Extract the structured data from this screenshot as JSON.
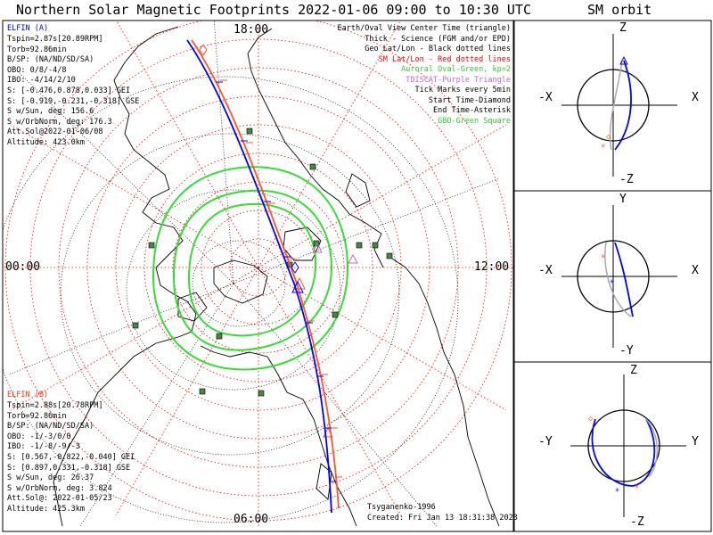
{
  "title": "Northern Solar Magnetic Footprints 2022-01-06 09:00 to 10:30 UTC",
  "orbit_title": "SM orbit",
  "map_ticks": {
    "top": "18:00",
    "left": "00:00",
    "right": "12:00",
    "bottom": "06:00"
  },
  "elfin_a": {
    "name": "ELFIN (A)",
    "lines": [
      "Tspin=2.87s[20.89RPM]",
      "Torb=92.86min",
      "B/SP: (NA/ND/SD/SA)",
      "OBO: 0/8/-4/8",
      "IBO: -4/14/2/10",
      "S: [-0.476,0.878,0.033] GEI",
      "S: [-0.919,-0.231,-0.318] GSE",
      "S w/Sun, deg: 156.6",
      "S w/OrbNorm, deg: 176.3",
      "Att.Sol@2022-01-06/08",
      "Altitude: 423.0km"
    ],
    "color": "#0000ff"
  },
  "elfin_b": {
    "name": "ELFIN (B)",
    "lines": [
      "Tspin=2.88s[20.78RPM]",
      "Torb=92.86min",
      "B/SP: (NA/ND/SD/SA)",
      "OBO: -1/-3/0/0",
      "IBO: -1/-8/-9/-3",
      "S: [0.567,-0.822,-0.040] GEI",
      "S: [0.897,0.331,-0.318] GSE",
      "S w/Sun, deg: 26.37",
      "S w/OrbNorm, deg: 3.824",
      "Att.Sol@: 2022-01-05/23",
      "Altitude: 425.3km"
    ],
    "color": "#ff3300"
  },
  "legend": [
    {
      "text": "Earth/Oval View Center Time (triangle)",
      "color": "#000000"
    },
    {
      "text": "Thick - Science (FGM and/or EPD)",
      "color": "#000000"
    },
    {
      "text": "Geo Lat/Lon - Black dotted lines",
      "color": "#000000"
    },
    {
      "text": "SM Lat/Lon - Red dotted lines",
      "color": "#ff0000"
    },
    {
      "text": "Auroral Oval-Green, kp=2",
      "color": "#33cc33"
    },
    {
      "text": "TDISCAT-Purple Triangle",
      "color": "#cc66cc"
    },
    {
      "text": "Tick Marks every 5min",
      "color": "#000000"
    },
    {
      "text": "Start Time-Diamond",
      "color": "#000000"
    },
    {
      "text": "End Time-Asterisk",
      "color": "#000000"
    },
    {
      "text": "GBO-Green Square",
      "color": "#33cc33"
    }
  ],
  "model": "Tsyganenko-1996",
  "created": "Created: Fri Jan 13 18:31:38 2023",
  "orbit_panels": [
    {
      "top": "Z",
      "bottom": "-Z",
      "left": "-X",
      "right": "X"
    },
    {
      "top": "Y",
      "bottom": "-Y",
      "left": "-X",
      "right": "X"
    },
    {
      "top": "Z",
      "bottom": "-Z",
      "left": "-Y",
      "right": "Y"
    }
  ]
}
